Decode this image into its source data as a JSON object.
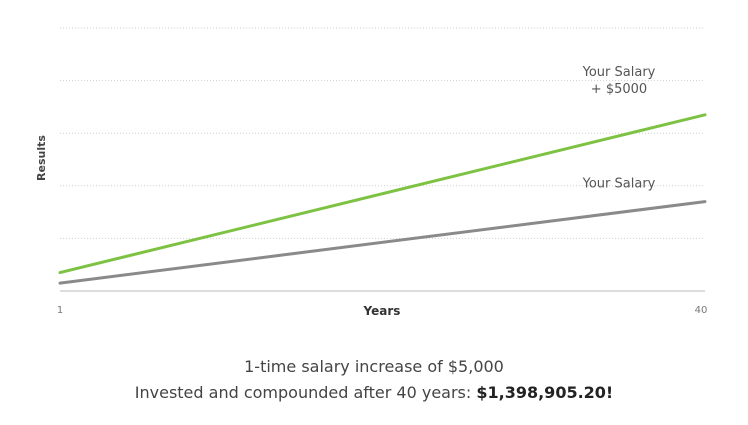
{
  "chart_data": {
    "type": "line",
    "ylabel": "Results",
    "xlabel": "Years",
    "x_ticks": [
      "1",
      "40"
    ],
    "xlim": [
      1,
      40
    ],
    "ylim": [
      0,
      5
    ],
    "grid": true,
    "gridlines_y": [
      1,
      2,
      3,
      4,
      5
    ],
    "series": [
      {
        "name": "Your Salary + $5000",
        "label_lines": [
          "Your Salary",
          "+ $5000"
        ],
        "color": "#7dc242",
        "x": [
          1,
          40
        ],
        "y": [
          0.35,
          3.35
        ]
      },
      {
        "name": "Your Salary",
        "label_lines": [
          "Your Salary"
        ],
        "color": "#8a8a8a",
        "x": [
          1,
          40
        ],
        "y": [
          0.15,
          1.7
        ]
      }
    ]
  },
  "caption": {
    "line1": "1-time salary increase of $5,000",
    "line2_prefix": "Invested and compounded after 40 years: ",
    "line2_amount": "$1,398,905.20!"
  }
}
